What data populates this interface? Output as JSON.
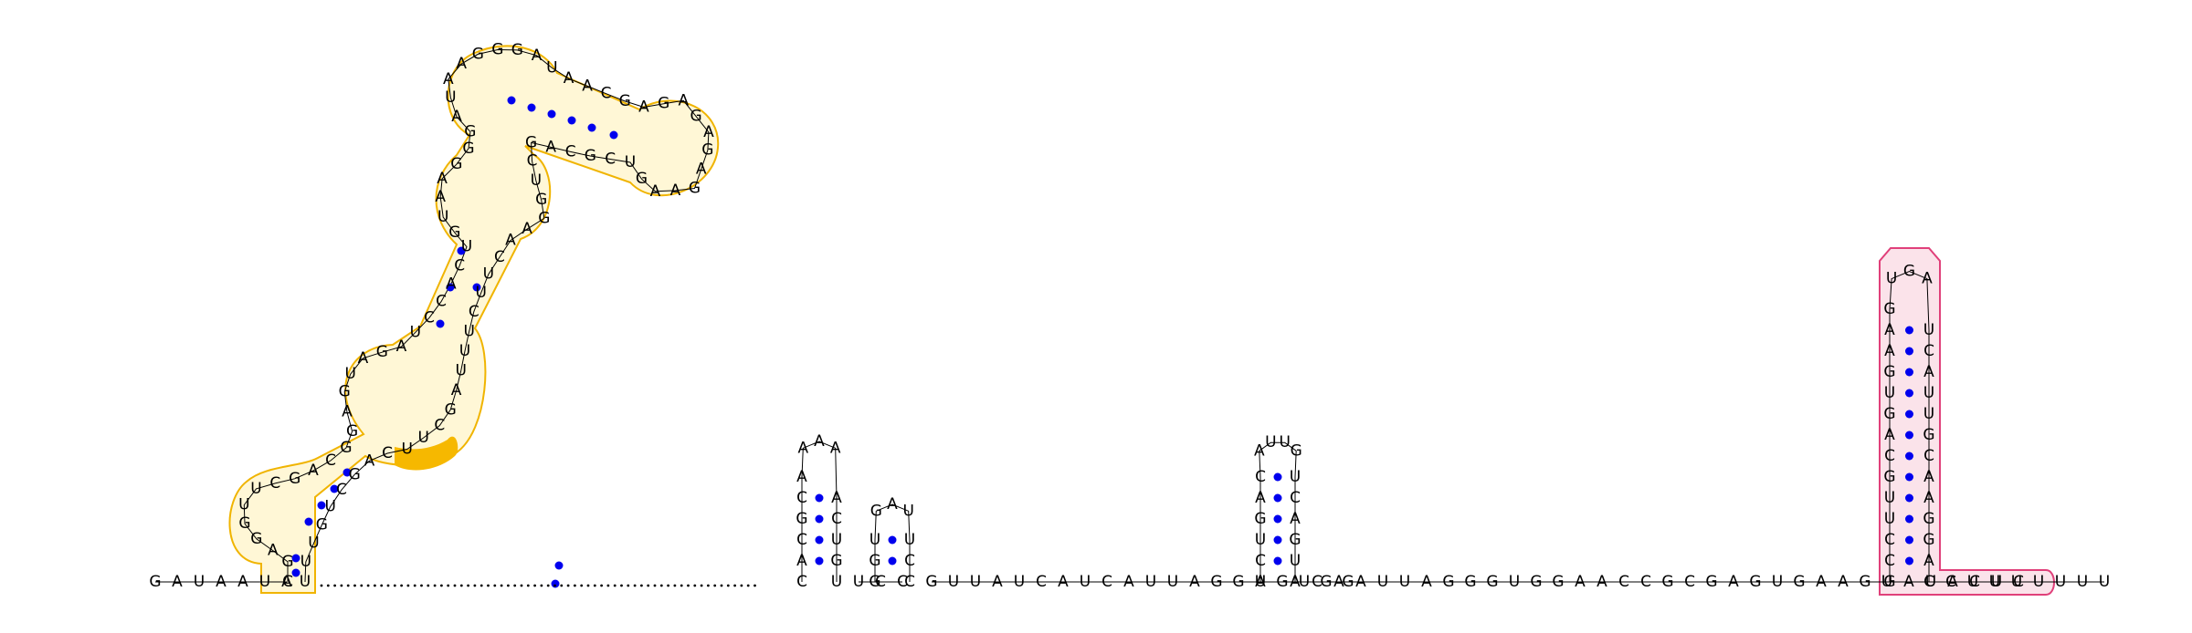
{
  "structure": {
    "five_prime_tail": "GAUAAUA",
    "main_domain": {
      "stem_1": {
        "five_prime": "CG",
        "three_prime": "UU"
      },
      "loop_1": "AGGUUC",
      "stem_2": {
        "five_prime": "GACG",
        "three_prime": "CUGU"
      },
      "loop_2": "GAGUAGAUCCAC",
      "stem_3": {
        "five_prime": "UGUAAG",
        "three_prime": "CUUCAG"
      },
      "loop_3": "GGAUAAGG",
      "stem_4": {
        "five_prime": "GAUA",
        "three_prime": "UUAG"
      },
      "loop_4": "ACGAGAGAG",
      "stem_5": {
        "five_prime": "AGAAGU",
        "three_prime": "ACUUCU"
      },
      "loop_5": "CGCAGCUGGA"
    },
    "linker_unpaired_dots": 66,
    "hairpin_a": {
      "five_prime": "CACGCA",
      "loop": "AAA",
      "three_prime": "ACUGU"
    },
    "spacer_a": "UCC",
    "hairpin_b": {
      "five_prime": "GGU",
      "loop": "GAU",
      "three_prime": "UCC"
    },
    "spacer_b": "GUUAUCAUCAUUAGGAGUGG",
    "hairpin_c": {
      "five_prime": "UCUGAC",
      "loop": "AUUG",
      "three_prime": "UCAGUA"
    },
    "spacer_c": "CAAUUAGGGUGGAACCGCGAGUGAAGUAUACUC",
    "terminator": {
      "five_prime": "GCCUUGCAGUGAAG",
      "loop": "UGA",
      "three_prime": "UCAUUGCAAGGAC"
    },
    "three_prime_tail": "CUUUUUUU"
  },
  "highlights": [
    {
      "region": "main_domain",
      "color": "#f0b400"
    },
    {
      "region": "terminator",
      "color": "#e0407a"
    },
    {
      "region": "terminator_tail",
      "color": "#e0407a"
    }
  ],
  "colors": {
    "pair_dot": "#0000ee",
    "yellow_outline": "#f0b400",
    "pink_outline": "#e0407a"
  }
}
